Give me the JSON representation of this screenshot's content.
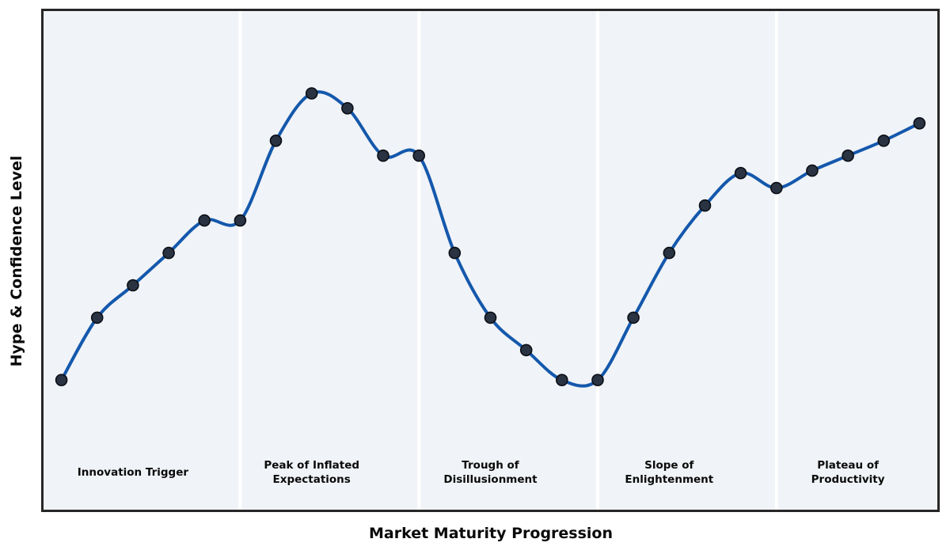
{
  "colors": {
    "line": "#1458ac",
    "marker_fill": "#2a3342",
    "marker_stroke": "#0b0f16",
    "plot_background": "#f0f3f7",
    "band_divider": "#ffffff",
    "plot_border": "#262626",
    "text": "#0a0a0a",
    "page_background": "#ffffff"
  },
  "chart_data": {
    "type": "line",
    "title": "",
    "xlabel": "Market Maturity Progression",
    "ylabel": "Hype & Confidence Level",
    "x": [
      0,
      1,
      2,
      3,
      4,
      5,
      6,
      7,
      8,
      9,
      10,
      11,
      12,
      13,
      14,
      15,
      16,
      17,
      18,
      19,
      20,
      21,
      22,
      23,
      24
    ],
    "values": [
      26,
      38.5,
      45,
      51.5,
      58,
      58,
      74,
      83.5,
      80.5,
      71,
      71,
      51.5,
      38.5,
      32,
      26,
      26,
      38.5,
      51.5,
      61,
      67.5,
      64.5,
      68,
      71,
      74,
      77.5
    ],
    "xlim": [
      -0.5,
      24.5
    ],
    "ylim": [
      0,
      100
    ],
    "grid": false,
    "smooth": true,
    "marker": "circle",
    "legend": null,
    "axis_ticks": "none",
    "phases": [
      {
        "label": "Innovation Trigger",
        "start": -0.5,
        "end": 5,
        "label_x": 2
      },
      {
        "label": "Peak of Inflated\nExpectations",
        "start": 5,
        "end": 10,
        "label_x": 7
      },
      {
        "label": "Trough of\nDisillusionment",
        "start": 10,
        "end": 15,
        "label_x": 12
      },
      {
        "label": "Slope of\nEnlightenment",
        "start": 15,
        "end": 20,
        "label_x": 17
      },
      {
        "label": "Plateau of\nProductivity",
        "start": 20,
        "end": 24.5,
        "label_x": 22
      }
    ],
    "phase_label_y_fraction": 0.925
  }
}
